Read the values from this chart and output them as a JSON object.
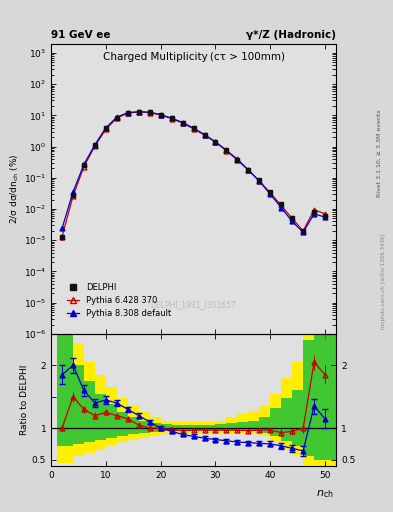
{
  "title_left": "91 GeV ee",
  "title_right": "γ*/Z (Hadronic)",
  "plot_title": "Charged Multiplicity (cτ > 100mm)",
  "ylabel_main": "2/σ dσ/dn_{ch} (%)",
  "ylabel_ratio": "Ratio to DELPHI",
  "right_label": "Rivet 3.1.10, ≥ 3.3M events",
  "watermark": "mcplots.cern.ch [arXiv:1306.3436]",
  "ref_label": "DELPHI_1991_I301657",
  "legend": [
    "DELPHI",
    "Pythia 6.428 370",
    "Pythia 8.308 default"
  ],
  "delphi_x": [
    2,
    4,
    6,
    8,
    10,
    12,
    14,
    16,
    18,
    20,
    22,
    24,
    26,
    28,
    30,
    32,
    34,
    36,
    38,
    40,
    42,
    44,
    46,
    48,
    50
  ],
  "delphi_y": [
    0.0013,
    0.028,
    0.25,
    1.1,
    3.8,
    8.5,
    12.0,
    13.0,
    12.5,
    10.5,
    8.0,
    5.8,
    3.8,
    2.4,
    1.4,
    0.75,
    0.38,
    0.18,
    0.082,
    0.034,
    0.014,
    0.005,
    0.002,
    0.008,
    0.006
  ],
  "delphi_yerr": [
    0.0003,
    0.003,
    0.015,
    0.05,
    0.1,
    0.2,
    0.25,
    0.25,
    0.25,
    0.2,
    0.15,
    0.1,
    0.07,
    0.05,
    0.035,
    0.02,
    0.012,
    0.007,
    0.004,
    0.002,
    0.001,
    0.0005,
    0.0003,
    0.001,
    0.0008
  ],
  "p6_x": [
    2,
    4,
    6,
    8,
    10,
    12,
    14,
    16,
    18,
    20,
    22,
    24,
    26,
    28,
    30,
    32,
    34,
    36,
    38,
    40,
    42,
    44,
    46,
    48,
    50
  ],
  "p6_y": [
    0.0013,
    0.026,
    0.23,
    1.05,
    3.6,
    8.2,
    11.8,
    12.8,
    12.2,
    10.3,
    7.9,
    5.7,
    3.7,
    2.35,
    1.38,
    0.74,
    0.37,
    0.175,
    0.08,
    0.033,
    0.013,
    0.005,
    0.002,
    0.0095,
    0.007
  ],
  "p8_x": [
    2,
    4,
    6,
    8,
    10,
    12,
    14,
    16,
    18,
    20,
    22,
    24,
    26,
    28,
    30,
    32,
    34,
    36,
    38,
    40,
    42,
    44,
    46,
    48,
    50
  ],
  "p8_y": [
    0.0024,
    0.035,
    0.27,
    1.15,
    4.0,
    8.8,
    12.2,
    13.2,
    12.6,
    10.6,
    8.1,
    5.9,
    3.9,
    2.42,
    1.42,
    0.76,
    0.39,
    0.18,
    0.078,
    0.03,
    0.011,
    0.004,
    0.0018,
    0.007,
    0.0055
  ],
  "ratio_p6_x": [
    2,
    4,
    6,
    8,
    10,
    12,
    14,
    16,
    18,
    20,
    22,
    24,
    26,
    28,
    30,
    32,
    34,
    36,
    38,
    40,
    42,
    44,
    46,
    48,
    50
  ],
  "ratio_p6_y": [
    1.0,
    1.5,
    1.3,
    1.2,
    1.25,
    1.2,
    1.15,
    1.05,
    1.0,
    1.0,
    0.98,
    0.96,
    0.97,
    0.97,
    0.97,
    0.97,
    0.97,
    0.96,
    0.97,
    0.97,
    0.93,
    0.95,
    1.0,
    2.05,
    1.85
  ],
  "ratio_p8_x": [
    2,
    4,
    6,
    8,
    10,
    12,
    14,
    16,
    18,
    20,
    22,
    24,
    26,
    28,
    30,
    32,
    34,
    36,
    38,
    40,
    42,
    44,
    46,
    48,
    50
  ],
  "ratio_p8_y": [
    1.85,
    2.0,
    1.6,
    1.4,
    1.45,
    1.4,
    1.3,
    1.2,
    1.1,
    1.0,
    0.95,
    0.9,
    0.87,
    0.84,
    0.82,
    0.8,
    0.78,
    0.77,
    0.76,
    0.75,
    0.72,
    0.68,
    0.64,
    1.35,
    1.15
  ],
  "ratio_p8_err": [
    0.15,
    0.12,
    0.08,
    0.07,
    0.06,
    0.05,
    0.04,
    0.04,
    0.03,
    0.03,
    0.03,
    0.03,
    0.03,
    0.03,
    0.03,
    0.03,
    0.03,
    0.03,
    0.03,
    0.04,
    0.05,
    0.06,
    0.08,
    0.12,
    0.15
  ],
  "ratio_p6_err": [
    0.05,
    0.08,
    0.06,
    0.05,
    0.05,
    0.04,
    0.04,
    0.03,
    0.03,
    0.03,
    0.03,
    0.03,
    0.03,
    0.03,
    0.03,
    0.03,
    0.03,
    0.03,
    0.03,
    0.04,
    0.05,
    0.06,
    0.08,
    0.12,
    0.15
  ],
  "green_band_x": [
    1,
    2,
    4,
    6,
    8,
    10,
    12,
    14,
    16,
    18,
    20,
    22,
    24,
    26,
    28,
    30,
    32,
    34,
    36,
    38,
    40,
    42,
    44,
    46,
    48,
    50,
    52
  ],
  "green_band_lo": [
    0.72,
    0.72,
    0.75,
    0.78,
    0.82,
    0.85,
    0.88,
    0.9,
    0.92,
    0.94,
    0.95,
    0.95,
    0.95,
    0.95,
    0.95,
    0.95,
    0.95,
    0.95,
    0.95,
    0.93,
    0.88,
    0.8,
    0.72,
    0.55,
    0.5,
    0.5,
    0.5
  ],
  "green_band_hi": [
    2.5,
    2.5,
    2.0,
    1.75,
    1.55,
    1.38,
    1.25,
    1.18,
    1.12,
    1.08,
    1.06,
    1.05,
    1.05,
    1.05,
    1.05,
    1.06,
    1.08,
    1.1,
    1.12,
    1.18,
    1.32,
    1.48,
    1.6,
    2.4,
    2.5,
    2.5,
    2.5
  ],
  "yellow_band_x": [
    1,
    2,
    4,
    6,
    8,
    10,
    12,
    14,
    16,
    18,
    20,
    22,
    24,
    26,
    28,
    30,
    32,
    34,
    36,
    38,
    40,
    42,
    44,
    46,
    48,
    50,
    52
  ],
  "yellow_band_lo": [
    0.45,
    0.45,
    0.55,
    0.6,
    0.65,
    0.72,
    0.78,
    0.82,
    0.85,
    0.88,
    0.9,
    0.9,
    0.9,
    0.9,
    0.9,
    0.9,
    0.9,
    0.9,
    0.9,
    0.88,
    0.78,
    0.65,
    0.55,
    0.42,
    0.38,
    0.38,
    0.38
  ],
  "yellow_band_hi": [
    2.8,
    2.8,
    2.35,
    2.05,
    1.85,
    1.65,
    1.48,
    1.35,
    1.25,
    1.18,
    1.12,
    1.1,
    1.1,
    1.1,
    1.1,
    1.12,
    1.18,
    1.22,
    1.28,
    1.35,
    1.55,
    1.8,
    2.05,
    2.7,
    2.8,
    2.8,
    2.8
  ],
  "ylim_main": [
    1e-06,
    2000
  ],
  "ylim_ratio": [
    0.4,
    2.5
  ],
  "xlim": [
    0,
    52
  ],
  "color_delphi": "#111111",
  "color_p6": "#cc0000",
  "color_p8": "#0000cc",
  "color_green": "#00bb44",
  "color_yellow": "#ffee00",
  "color_bg": "#d8d8d8",
  "color_panel": "#e0e0e0"
}
